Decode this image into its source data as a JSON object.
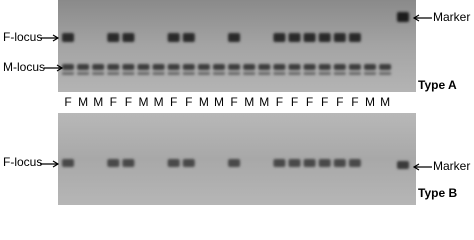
{
  "gel_a": {
    "f_locus": "F-locus",
    "m_locus": "M-locus",
    "marker": "Marker",
    "type": "Type A"
  },
  "lanes": [
    "F",
    "M",
    "M",
    "F",
    "F",
    "M",
    "M",
    "F",
    "F",
    "M",
    "M",
    "F",
    "M",
    "M",
    "F",
    "F",
    "F",
    "F",
    "F",
    "F",
    "M",
    "M"
  ],
  "gel_b": {
    "f_locus": "F-locus",
    "marker": "Marker",
    "type": "Type B"
  }
}
